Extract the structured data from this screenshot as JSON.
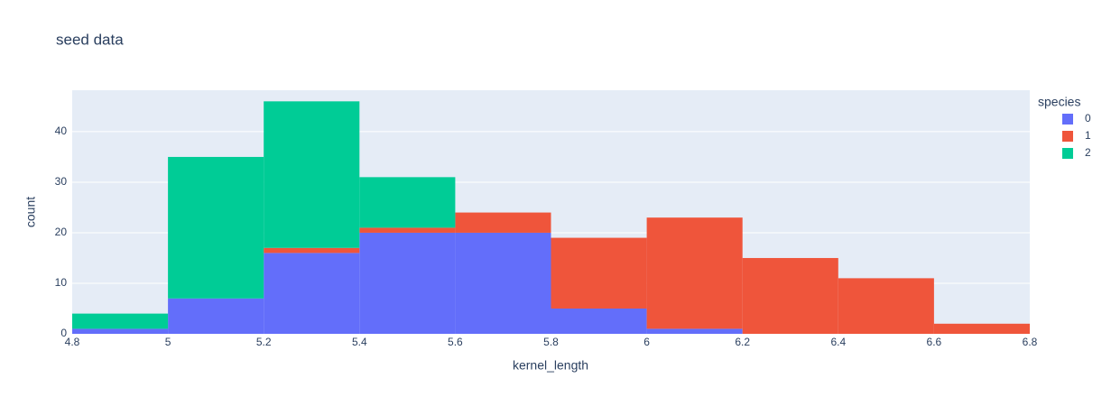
{
  "chart_data": {
    "type": "histogram",
    "title": "seed data",
    "x_label": "kernel_length",
    "y_label": "count",
    "legend_title": "species",
    "bins": [
      4.8,
      5,
      5.2,
      5.4,
      5.6,
      5.8,
      6,
      6.2,
      6.4,
      6.6,
      6.8
    ],
    "series": [
      {
        "name": "0",
        "color": "#636efa",
        "values": [
          1,
          7,
          16,
          20,
          20,
          5,
          1,
          0,
          0,
          0
        ]
      },
      {
        "name": "1",
        "color": "#EF553B",
        "values": [
          0,
          0,
          1,
          1,
          4,
          14,
          22,
          15,
          11,
          2
        ]
      },
      {
        "name": "2",
        "color": "#00cc96",
        "values": [
          3,
          28,
          29,
          10,
          0,
          0,
          0,
          0,
          0,
          0
        ]
      }
    ],
    "xlim": [
      4.8,
      6.8
    ],
    "xticks": [
      4.8,
      5,
      5.2,
      5.4,
      5.6,
      5.8,
      6,
      6.2,
      6.4,
      6.6,
      6.8
    ],
    "ylim": [
      0,
      48.2
    ],
    "yticks": [
      0,
      10,
      20,
      30,
      40
    ],
    "grid": true,
    "legend": "right"
  }
}
